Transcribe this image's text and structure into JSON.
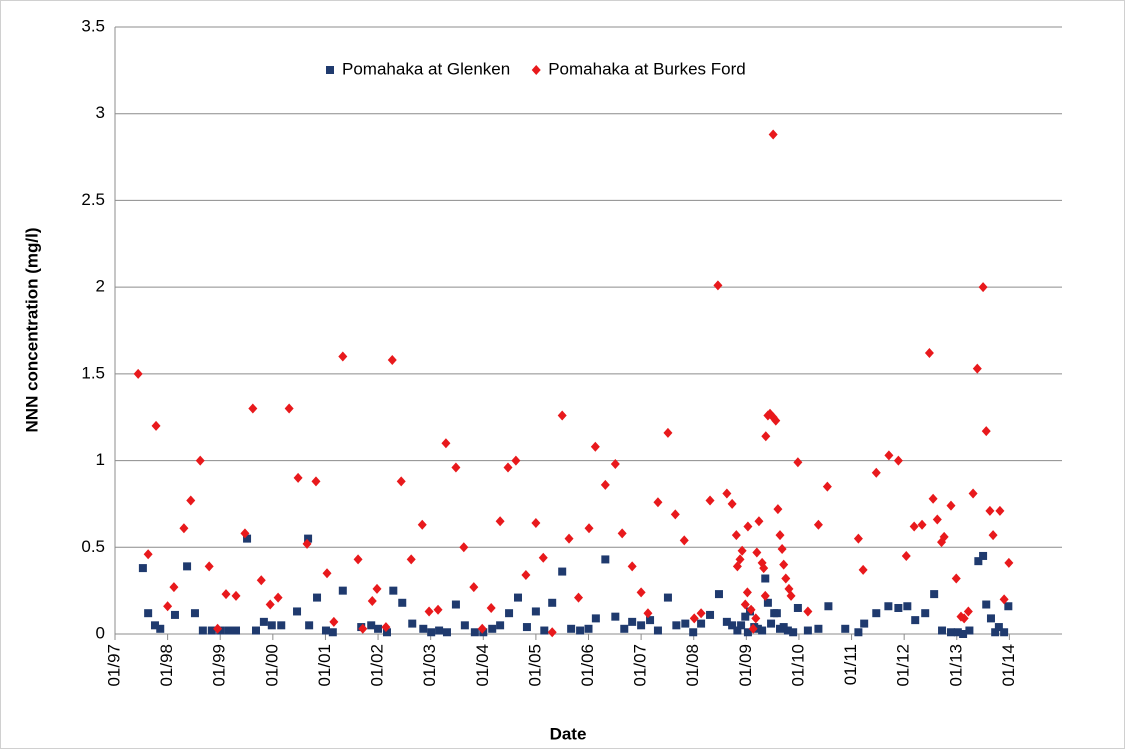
{
  "chart_data": {
    "type": "scatter",
    "xlabel": "Date",
    "ylabel": "NNN concentration (mg/l)",
    "xlim": [
      1997,
      2015
    ],
    "ylim": [
      0,
      3.5
    ],
    "xticks": [
      {
        "value": 1997,
        "label": "01/97"
      },
      {
        "value": 1998,
        "label": "01/98"
      },
      {
        "value": 1999,
        "label": "01/99"
      },
      {
        "value": 2000,
        "label": "01/00"
      },
      {
        "value": 2001,
        "label": "01/01"
      },
      {
        "value": 2002,
        "label": "01/02"
      },
      {
        "value": 2003,
        "label": "01/03"
      },
      {
        "value": 2004,
        "label": "01/04"
      },
      {
        "value": 2005,
        "label": "01/05"
      },
      {
        "value": 2006,
        "label": "01/06"
      },
      {
        "value": 2007,
        "label": "01/07"
      },
      {
        "value": 2008,
        "label": "01/08"
      },
      {
        "value": 2009,
        "label": "01/09"
      },
      {
        "value": 2010,
        "label": "01/10"
      },
      {
        "value": 2011,
        "label": "01/11"
      },
      {
        "value": 2012,
        "label": "01/12"
      },
      {
        "value": 2013,
        "label": "01/13"
      },
      {
        "value": 2014,
        "label": "01/14"
      }
    ],
    "yticks": [
      0,
      0.5,
      1,
      1.5,
      2,
      2.5,
      3,
      3.5
    ],
    "grid": true,
    "legend": "top",
    "series": [
      {
        "name": "Pomahaka at Glenken",
        "color": "#1f3a6e",
        "marker": "square",
        "x": [
          1997.53,
          1997.63,
          1997.76,
          1997.86,
          1998.14,
          1998.37,
          1998.52,
          1998.67,
          1998.84,
          1999.0,
          1999.15,
          1999.3,
          1999.51,
          1999.68,
          1999.83,
          1999.98,
          2000.16,
          2000.46,
          2000.67,
          2000.69,
          2000.84,
          2001.01,
          2001.14,
          2001.33,
          2001.68,
          2001.87,
          2002.0,
          2002.17,
          2002.29,
          2002.46,
          2002.65,
          2002.86,
          2003.01,
          2003.16,
          2003.31,
          2003.48,
          2003.65,
          2003.84,
          2004.0,
          2004.17,
          2004.32,
          2004.49,
          2004.66,
          2004.83,
          2005.0,
          2005.16,
          2005.31,
          2005.5,
          2005.67,
          2005.84,
          2006.0,
          2006.14,
          2006.32,
          2006.51,
          2006.68,
          2006.83,
          2007.0,
          2007.17,
          2007.32,
          2007.51,
          2007.67,
          2007.84,
          2007.99,
          2008.14,
          2008.31,
          2008.48,
          2008.63,
          2008.73,
          2008.83,
          2008.9,
          2008.98,
          2009.03,
          2009.07,
          2009.15,
          2009.22,
          2009.3,
          2009.36,
          2009.41,
          2009.47,
          2009.53,
          2009.58,
          2009.64,
          2009.71,
          2009.79,
          2009.89,
          2009.98,
          2010.17,
          2010.37,
          2010.56,
          2010.88,
          2011.13,
          2011.24,
          2011.47,
          2011.7,
          2011.89,
          2012.06,
          2012.21,
          2012.4,
          2012.57,
          2012.72,
          2012.89,
          2013.02,
          2013.12,
          2013.24,
          2013.41,
          2013.5,
          2013.56,
          2013.65,
          2013.73,
          2013.8,
          2013.9,
          2013.98
        ],
        "values": [
          0.38,
          0.12,
          0.05,
          0.03,
          0.11,
          0.39,
          0.12,
          0.02,
          0.02,
          0.02,
          0.02,
          0.02,
          0.55,
          0.02,
          0.07,
          0.05,
          0.05,
          0.13,
          0.55,
          0.05,
          0.21,
          0.02,
          0.01,
          0.25,
          0.04,
          0.05,
          0.03,
          0.01,
          0.25,
          0.18,
          0.06,
          0.03,
          0.01,
          0.02,
          0.01,
          0.17,
          0.05,
          0.01,
          0.01,
          0.03,
          0.05,
          0.12,
          0.21,
          0.04,
          0.13,
          0.02,
          0.18,
          0.36,
          0.03,
          0.02,
          0.03,
          0.09,
          0.43,
          0.1,
          0.03,
          0.07,
          0.05,
          0.08,
          0.02,
          0.21,
          0.05,
          0.06,
          0.01,
          0.06,
          0.11,
          0.23,
          0.07,
          0.05,
          0.02,
          0.05,
          0.1,
          0.01,
          0.13,
          0.04,
          0.03,
          0.02,
          0.32,
          0.18,
          0.06,
          0.12,
          0.12,
          0.03,
          0.04,
          0.02,
          0.01,
          0.15,
          0.02,
          0.03,
          0.16,
          0.03,
          0.01,
          0.06,
          0.12,
          0.16,
          0.15,
          0.16,
          0.08,
          0.12,
          0.23,
          0.02,
          0.01,
          0.01,
          0,
          0.02,
          0.42,
          0.45,
          0.17,
          0.09,
          0.01,
          0.04,
          0.01,
          0.16
        ]
      },
      {
        "name": "Pomahaka at Burkes Ford",
        "color": "#e8191c",
        "marker": "diamond",
        "x": [
          1997.44,
          1997.63,
          1997.78,
          1998.0,
          1998.12,
          1998.31,
          1998.44,
          1998.62,
          1998.79,
          1998.95,
          1999.11,
          1999.3,
          1999.47,
          1999.62,
          1999.78,
          1999.95,
          2000.1,
          2000.31,
          2000.48,
          2000.65,
          2000.82,
          2001.03,
          2001.16,
          2001.33,
          2001.62,
          2001.71,
          2001.89,
          2001.98,
          2002.15,
          2002.27,
          2002.44,
          2002.63,
          2002.84,
          2002.97,
          2003.14,
          2003.29,
          2003.48,
          2003.63,
          2003.82,
          2003.98,
          2004.15,
          2004.32,
          2004.47,
          2004.62,
          2004.81,
          2005.0,
          2005.14,
          2005.31,
          2005.5,
          2005.63,
          2005.81,
          2006.01,
          2006.13,
          2006.32,
          2006.51,
          2006.64,
          2006.83,
          2007.0,
          2007.13,
          2007.32,
          2007.51,
          2007.65,
          2007.82,
          2008.01,
          2008.14,
          2008.31,
          2008.46,
          2008.63,
          2008.73,
          2008.81,
          2008.83,
          2008.88,
          2008.92,
          2008.98,
          2009.02,
          2009.03,
          2009.09,
          2009.13,
          2009.18,
          2009.2,
          2009.24,
          2009.3,
          2009.33,
          2009.36,
          2009.37,
          2009.41,
          2009.45,
          2009.51,
          2009.51,
          2009.56,
          2009.6,
          2009.64,
          2009.68,
          2009.71,
          2009.75,
          2009.81,
          2009.85,
          2009.98,
          2010.17,
          2010.37,
          2010.54,
          2011.13,
          2011.22,
          2011.47,
          2011.71,
          2011.89,
          2012.04,
          2012.19,
          2012.34,
          2012.48,
          2012.55,
          2012.63,
          2012.71,
          2012.76,
          2012.89,
          2012.99,
          2013.08,
          2013.14,
          2013.22,
          2013.31,
          2013.39,
          2013.5,
          2013.56,
          2013.63,
          2013.69,
          2013.82,
          2013.9,
          2013.99
        ],
        "values": [
          1.5,
          0.46,
          1.2,
          0.16,
          0.27,
          0.61,
          0.77,
          1.0,
          0.39,
          0.03,
          0.23,
          0.22,
          0.58,
          1.3,
          0.31,
          0.17,
          0.21,
          1.3,
          0.9,
          0.52,
          0.88,
          0.35,
          0.07,
          1.6,
          0.43,
          0.03,
          0.19,
          0.26,
          0.04,
          1.58,
          0.88,
          0.43,
          0.63,
          0.13,
          0.14,
          1.1,
          0.96,
          0.5,
          0.27,
          0.03,
          0.15,
          0.65,
          0.96,
          1.0,
          0.34,
          0.64,
          0.44,
          0.01,
          1.26,
          0.55,
          0.21,
          0.61,
          1.08,
          0.86,
          0.98,
          0.58,
          0.39,
          0.24,
          0.12,
          0.76,
          1.16,
          0.69,
          0.54,
          0.09,
          0.12,
          0.77,
          2.01,
          0.81,
          0.75,
          0.57,
          0.39,
          0.43,
          0.48,
          0.17,
          0.24,
          0.62,
          0.14,
          0.03,
          0.09,
          0.47,
          0.65,
          0.41,
          0.38,
          0.22,
          1.14,
          1.26,
          1.27,
          1.25,
          2.88,
          1.23,
          0.72,
          0.57,
          0.49,
          0.4,
          0.32,
          0.26,
          0.22,
          0.99,
          0.13,
          0.63,
          0.85,
          0.55,
          0.37,
          0.93,
          1.03,
          1.0,
          0.45,
          0.62,
          0.63,
          1.62,
          0.78,
          0.66,
          0.53,
          0.56,
          0.74,
          0.32,
          0.1,
          0.09,
          0.13,
          0.81,
          1.53,
          2.0,
          1.17,
          0.71,
          0.57,
          0.71,
          0.2,
          0.41
        ]
      }
    ]
  }
}
